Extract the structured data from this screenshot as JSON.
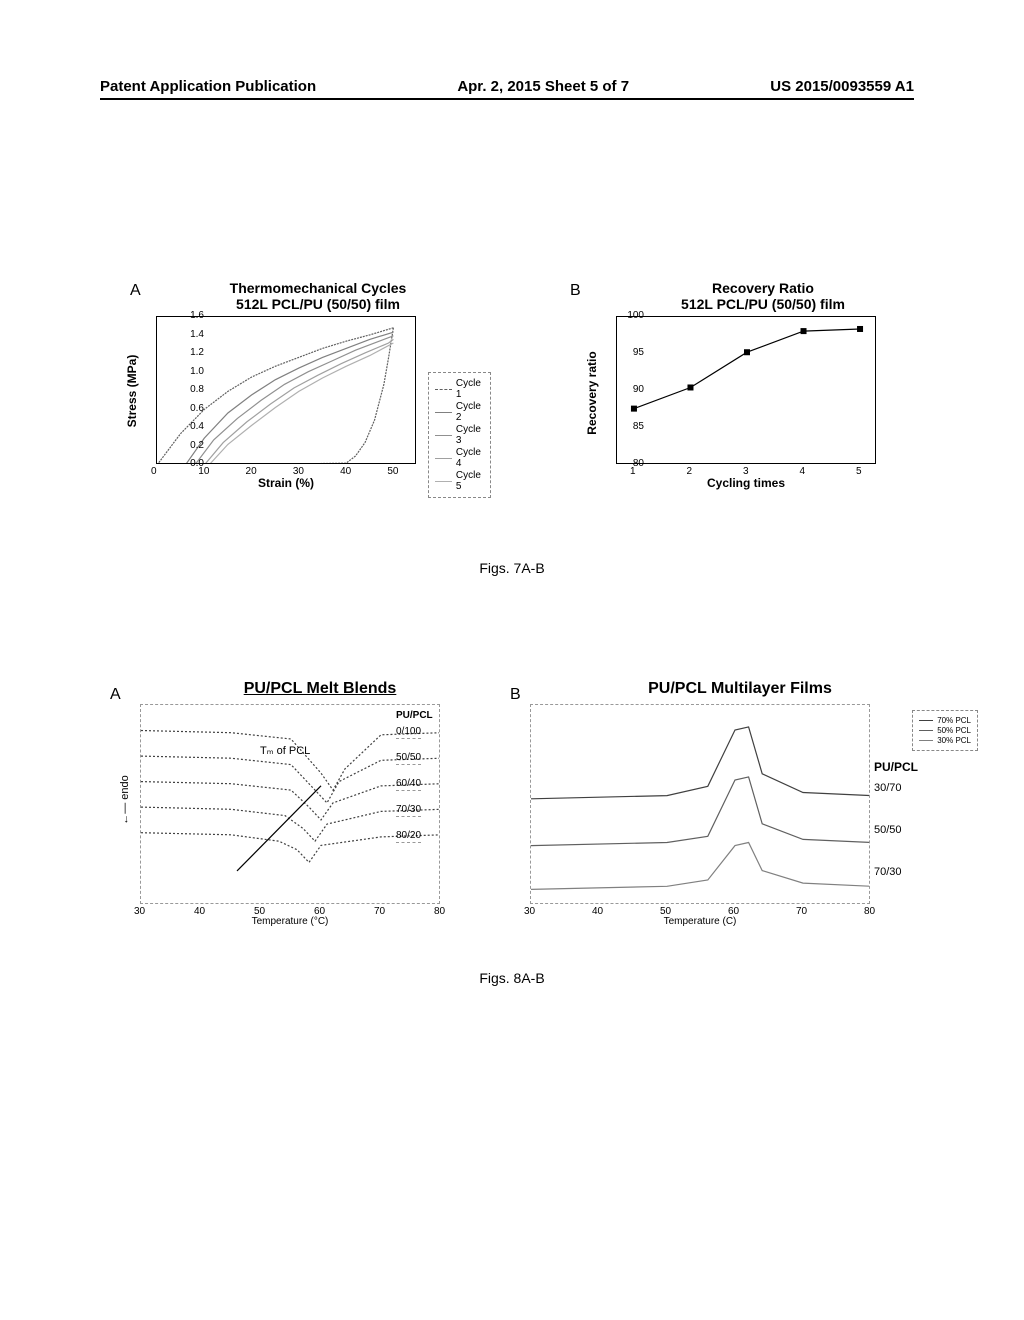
{
  "header": {
    "left": "Patent Application Publication",
    "center": "Apr. 2, 2015  Sheet 5 of 7",
    "right": "US 2015/0093559 A1"
  },
  "fig7": {
    "caption": "Figs. 7A-B",
    "panelA": {
      "label": "A",
      "title_l1": "Thermomechanical Cycles",
      "title_l2": "512L PCL/PU (50/50) film",
      "ylabel": "Stress (MPa)",
      "xlabel": "Strain (%)",
      "yticks": [
        "0.0",
        "0.2",
        "0.4",
        "0.6",
        "0.8",
        "1.0",
        "1.2",
        "1.4",
        "1.6"
      ],
      "xticks": [
        "0",
        "10",
        "20",
        "30",
        "40",
        "50"
      ],
      "legend": [
        "Cycle 1",
        "Cycle 2",
        "Cycle 3",
        "Cycle 4",
        "Cycle 5"
      ],
      "curves": {
        "c1_up": [
          [
            0,
            0
          ],
          [
            5,
            0.35
          ],
          [
            10,
            0.62
          ],
          [
            15,
            0.82
          ],
          [
            20,
            0.98
          ],
          [
            25,
            1.1
          ],
          [
            30,
            1.2
          ],
          [
            35,
            1.3
          ],
          [
            40,
            1.38
          ],
          [
            45,
            1.45
          ],
          [
            50,
            1.53
          ]
        ],
        "c1_down": [
          [
            50,
            1.53
          ],
          [
            49,
            1.2
          ],
          [
            48,
            0.9
          ],
          [
            46,
            0.5
          ],
          [
            44,
            0.25
          ],
          [
            42,
            0.1
          ],
          [
            40,
            0.02
          ],
          [
            12,
            0
          ]
        ],
        "c2_up": [
          [
            6,
            0
          ],
          [
            10,
            0.3
          ],
          [
            15,
            0.58
          ],
          [
            20,
            0.78
          ],
          [
            25,
            0.95
          ],
          [
            30,
            1.08
          ],
          [
            35,
            1.2
          ],
          [
            40,
            1.3
          ],
          [
            45,
            1.4
          ],
          [
            50,
            1.48
          ]
        ],
        "c3_up": [
          [
            8,
            0
          ],
          [
            12,
            0.28
          ],
          [
            17,
            0.52
          ],
          [
            22,
            0.72
          ],
          [
            27,
            0.9
          ],
          [
            32,
            1.04
          ],
          [
            37,
            1.16
          ],
          [
            42,
            1.28
          ],
          [
            47,
            1.38
          ],
          [
            50,
            1.44
          ]
        ],
        "c4_up": [
          [
            10,
            0
          ],
          [
            14,
            0.25
          ],
          [
            19,
            0.48
          ],
          [
            24,
            0.68
          ],
          [
            29,
            0.86
          ],
          [
            34,
            1.0
          ],
          [
            39,
            1.13
          ],
          [
            44,
            1.25
          ],
          [
            49,
            1.36
          ],
          [
            50,
            1.4
          ]
        ],
        "c5_up": [
          [
            11,
            0
          ],
          [
            15,
            0.23
          ],
          [
            20,
            0.44
          ],
          [
            25,
            0.64
          ],
          [
            30,
            0.82
          ],
          [
            35,
            0.97
          ],
          [
            40,
            1.1
          ],
          [
            45,
            1.22
          ],
          [
            50,
            1.36
          ]
        ]
      },
      "colors": {
        "c1": "#606060",
        "c2": "#808080",
        "c3": "#909090",
        "c4": "#a0a0a0",
        "c5": "#b0b0b0"
      },
      "xlim": [
        0,
        55
      ],
      "ylim": [
        0,
        1.65
      ]
    },
    "panelB": {
      "label": "B",
      "title_l1": "Recovery Ratio",
      "title_l2": "512L PCL/PU (50/50) film",
      "ylabel": "Recovery ratio",
      "xlabel": "Cycling times",
      "yticks": [
        "80",
        "85",
        "90",
        "95",
        "100"
      ],
      "xticks": [
        "1",
        "2",
        "3",
        "4",
        "5"
      ],
      "data": [
        [
          1,
          88
        ],
        [
          2,
          91
        ],
        [
          3,
          96
        ],
        [
          4,
          99
        ],
        [
          5,
          99.3
        ]
      ],
      "color": "#000000",
      "xlim": [
        0.7,
        5.3
      ],
      "ylim": [
        80,
        101
      ]
    }
  },
  "fig8": {
    "caption": "Figs. 8A-B",
    "panelA": {
      "label": "A",
      "title": "PU/PCL Melt Blends",
      "ylabel": "endo",
      "xlabel": "Temperature (°C)",
      "xticks": [
        "30",
        "40",
        "50",
        "60",
        "70",
        "80"
      ],
      "annotation": "Tₘ of PCL",
      "right_labels": [
        "PU/PCL",
        "0/100",
        "50/50",
        "60/40",
        "70/30",
        "80/20"
      ],
      "curves": [
        [
          [
            30,
            5.6
          ],
          [
            45,
            5.55
          ],
          [
            55,
            5.4
          ],
          [
            60,
            4.6
          ],
          [
            62,
            4.2
          ],
          [
            64,
            4.7
          ],
          [
            70,
            5.5
          ],
          [
            80,
            5.55
          ]
        ],
        [
          [
            30,
            5.0
          ],
          [
            45,
            4.95
          ],
          [
            55,
            4.8
          ],
          [
            59,
            4.2
          ],
          [
            61,
            3.9
          ],
          [
            63,
            4.4
          ],
          [
            70,
            4.9
          ],
          [
            80,
            4.95
          ]
        ],
        [
          [
            30,
            4.4
          ],
          [
            45,
            4.35
          ],
          [
            55,
            4.2
          ],
          [
            58,
            3.8
          ],
          [
            60,
            3.5
          ],
          [
            62,
            3.9
          ],
          [
            70,
            4.3
          ],
          [
            80,
            4.35
          ]
        ],
        [
          [
            30,
            3.8
          ],
          [
            45,
            3.75
          ],
          [
            54,
            3.6
          ],
          [
            57,
            3.3
          ],
          [
            59,
            3.0
          ],
          [
            61,
            3.4
          ],
          [
            70,
            3.7
          ],
          [
            80,
            3.75
          ]
        ],
        [
          [
            30,
            3.2
          ],
          [
            45,
            3.15
          ],
          [
            53,
            3.0
          ],
          [
            56,
            2.8
          ],
          [
            58,
            2.5
          ],
          [
            60,
            2.9
          ],
          [
            70,
            3.1
          ],
          [
            80,
            3.15
          ]
        ]
      ],
      "arrow": {
        "from": [
          46,
          2.3
        ],
        "to": [
          60,
          4.3
        ]
      },
      "color": "#404040",
      "xlim": [
        30,
        80
      ],
      "ylim": [
        1.5,
        6.2
      ]
    },
    "panelB": {
      "label": "B",
      "title": "PU/PCL Multilayer Films",
      "xlabel": "Temperature (C)",
      "xticks": [
        "30",
        "40",
        "50",
        "60",
        "70",
        "80"
      ],
      "legend": [
        "70% PCL",
        "50% PCL",
        "30% PCL"
      ],
      "right_heading": "PU/PCL",
      "right_labels": [
        "30/70",
        "50/50",
        "70/30"
      ],
      "curves": [
        [
          [
            30,
            4.2
          ],
          [
            50,
            4.3
          ],
          [
            56,
            4.6
          ],
          [
            60,
            6.4
          ],
          [
            62,
            6.5
          ],
          [
            64,
            5.0
          ],
          [
            70,
            4.4
          ],
          [
            80,
            4.3
          ]
        ],
        [
          [
            30,
            2.7
          ],
          [
            50,
            2.8
          ],
          [
            56,
            3.0
          ],
          [
            60,
            4.8
          ],
          [
            62,
            4.9
          ],
          [
            64,
            3.4
          ],
          [
            70,
            2.9
          ],
          [
            80,
            2.8
          ]
        ],
        [
          [
            30,
            1.3
          ],
          [
            50,
            1.4
          ],
          [
            56,
            1.6
          ],
          [
            60,
            2.7
          ],
          [
            62,
            2.8
          ],
          [
            64,
            1.9
          ],
          [
            70,
            1.5
          ],
          [
            80,
            1.4
          ]
        ]
      ],
      "colors": [
        "#404040",
        "#606060",
        "#808080"
      ],
      "xlim": [
        30,
        80
      ],
      "ylim": [
        0.8,
        7.2
      ]
    }
  }
}
